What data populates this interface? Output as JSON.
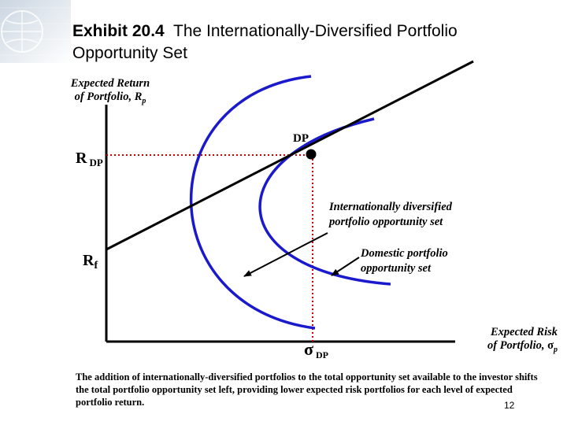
{
  "header": {
    "exhibit": "Exhibit 20.4",
    "title_rest": "The Internationally-Diversified Portfolio",
    "title_line2": "Opportunity Set"
  },
  "axes": {
    "y_label_line1": "Expected Return",
    "y_label_line2": "of Portfolio, R",
    "y_label_sub": "p",
    "x_label_line1": "Expected Risk",
    "x_label_line2": "of Portfolio,",
    "x_label_sym": "σ",
    "x_label_sub": "p"
  },
  "points": {
    "dp_label": "DP",
    "r_dp_main": "R",
    "r_dp_sub": "DP",
    "rf_main": "R",
    "rf_sub": "f",
    "sigma_dp_main": "σ",
    "sigma_dp_sub": "DP"
  },
  "annotations": {
    "intl_line1": "Internationally diversified",
    "intl_line2": "portfolio opportunity set",
    "dom_line1": "Domestic portfolio",
    "dom_line2": "opportunity set"
  },
  "caption": "The addition of internationally-diversified portfolios to the total opportunity set available to the investor shifts the total portfolio opportunity set left, providing lower expected risk portfolios for each level of expected portfolio return.",
  "page_number": "12",
  "colors": {
    "frontier": "#1a1acc",
    "guide": "#cc0000",
    "axis": "#000000"
  }
}
